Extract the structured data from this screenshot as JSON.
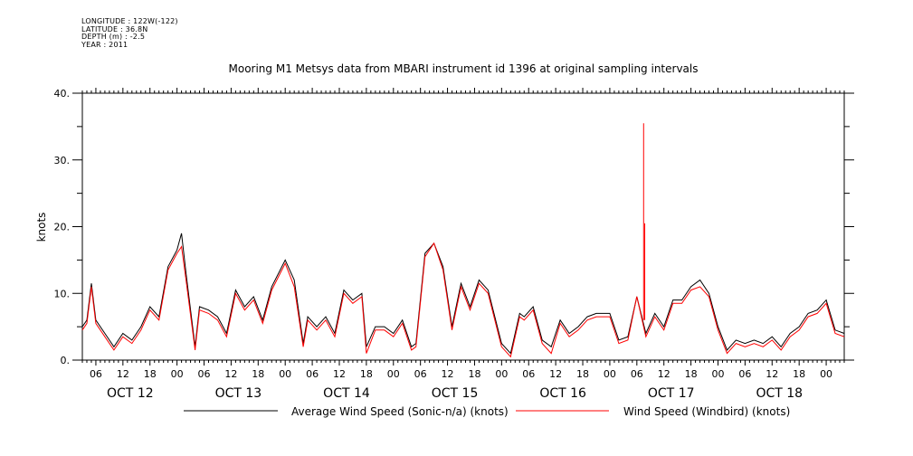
{
  "header": {
    "lines": [
      "LONGITUDE : 122W(-122)",
      "LATITUDE : 36.8N",
      "DEPTH (m) : -2.5",
      "YEAR : 2011"
    ]
  },
  "chart_data": {
    "type": "line",
    "title": "Mooring M1 Metsys data from MBARI instrument id 1396 at original sampling intervals",
    "ylabel": "knots",
    "ylim": [
      0,
      40
    ],
    "yticks": [
      "0.",
      "10.",
      "20.",
      "30.",
      "40."
    ],
    "xlim": [
      "2011-10-12T03:00",
      "2011-10-19T04:00"
    ],
    "hour_ticks": [
      "06",
      "12",
      "18",
      "00",
      "06",
      "12",
      "18",
      "00",
      "06",
      "12",
      "18",
      "00",
      "06",
      "12",
      "18",
      "00",
      "06",
      "12",
      "18",
      "00",
      "06",
      "12",
      "18",
      "00",
      "06",
      "12",
      "18",
      "00"
    ],
    "day_labels": [
      "OCT 12",
      "OCT 13",
      "OCT 14",
      "OCT 15",
      "OCT 16",
      "OCT 17",
      "OCT 18"
    ],
    "colors": {
      "avg": "#000000",
      "windbird": "#ff0000"
    },
    "series": [
      {
        "name": "Average Wind Speed (Sonic-n/a) (knots)",
        "color": "#000000",
        "x": [
          "2011-10-12T03:00",
          "2011-10-12T04:00",
          "2011-10-12T05:00",
          "2011-10-12T06:00",
          "2011-10-12T08:00",
          "2011-10-12T10:00",
          "2011-10-12T12:00",
          "2011-10-12T14:00",
          "2011-10-12T16:00",
          "2011-10-12T18:00",
          "2011-10-12T20:00",
          "2011-10-12T22:00",
          "2011-10-13T00:00",
          "2011-10-13T01:00",
          "2011-10-13T02:00",
          "2011-10-13T04:00",
          "2011-10-13T05:00",
          "2011-10-13T07:00",
          "2011-10-13T09:00",
          "2011-10-13T11:00",
          "2011-10-13T13:00",
          "2011-10-13T15:00",
          "2011-10-13T17:00",
          "2011-10-13T19:00",
          "2011-10-13T21:00",
          "2011-10-14T00:00",
          "2011-10-14T02:00",
          "2011-10-14T04:00",
          "2011-10-14T05:00",
          "2011-10-14T07:00",
          "2011-10-14T09:00",
          "2011-10-14T11:00",
          "2011-10-14T13:00",
          "2011-10-14T15:00",
          "2011-10-14T17:00",
          "2011-10-14T18:00",
          "2011-10-14T20:00",
          "2011-10-14T22:00",
          "2011-10-15T00:00",
          "2011-10-15T02:00",
          "2011-10-15T04:00",
          "2011-10-15T05:00",
          "2011-10-15T07:00",
          "2011-10-15T09:00",
          "2011-10-15T11:00",
          "2011-10-15T13:00",
          "2011-10-15T15:00",
          "2011-10-15T17:00",
          "2011-10-15T19:00",
          "2011-10-15T21:00",
          "2011-10-16T00:00",
          "2011-10-16T02:00",
          "2011-10-16T04:00",
          "2011-10-16T05:00",
          "2011-10-16T07:00",
          "2011-10-16T09:00",
          "2011-10-16T11:00",
          "2011-10-16T13:00",
          "2011-10-16T15:00",
          "2011-10-16T17:00",
          "2011-10-16T19:00",
          "2011-10-16T21:00",
          "2011-10-17T00:00",
          "2011-10-17T02:00",
          "2011-10-17T04:00",
          "2011-10-17T06:00",
          "2011-10-17T08:00",
          "2011-10-17T10:00",
          "2011-10-17T12:00",
          "2011-10-17T14:00",
          "2011-10-17T16:00",
          "2011-10-17T18:00",
          "2011-10-17T20:00",
          "2011-10-17T22:00",
          "2011-10-18T00:00",
          "2011-10-18T02:00",
          "2011-10-18T04:00",
          "2011-10-18T06:00",
          "2011-10-18T08:00",
          "2011-10-18T10:00",
          "2011-10-18T12:00",
          "2011-10-18T14:00",
          "2011-10-18T16:00",
          "2011-10-18T18:00",
          "2011-10-18T20:00",
          "2011-10-18T22:00",
          "2011-10-19T00:00",
          "2011-10-19T02:00",
          "2011-10-19T04:00"
        ],
        "y": [
          5,
          6,
          11.5,
          6,
          4,
          2,
          4,
          3,
          5,
          8,
          6.5,
          14,
          16.5,
          19,
          13,
          2,
          8,
          7.5,
          6.5,
          4,
          10.5,
          8,
          9.5,
          6,
          11,
          15,
          12,
          2.5,
          6.5,
          5,
          6.5,
          4,
          10.5,
          9,
          10,
          2,
          5,
          5,
          4,
          6,
          2,
          2.5,
          16,
          17.5,
          14,
          5,
          11.5,
          8,
          12,
          10.5,
          2.5,
          1,
          7,
          6.5,
          8,
          3,
          2,
          6,
          4,
          5,
          6.5,
          7,
          7,
          3,
          3.5,
          9.5,
          4,
          7,
          5,
          9,
          9,
          11,
          12,
          10,
          5,
          1.5,
          3,
          2.5,
          3,
          2.5,
          3.5,
          2,
          4,
          5,
          7,
          7.5,
          9,
          4.5,
          4
        ]
      },
      {
        "name": "Wind Speed (Windbird) (knots)",
        "color": "#ff0000",
        "x": [
          "2011-10-12T03:00",
          "2011-10-12T04:00",
          "2011-10-12T05:00",
          "2011-10-12T06:00",
          "2011-10-12T08:00",
          "2011-10-12T10:00",
          "2011-10-12T12:00",
          "2011-10-12T14:00",
          "2011-10-12T16:00",
          "2011-10-12T18:00",
          "2011-10-12T20:00",
          "2011-10-12T22:00",
          "2011-10-13T00:00",
          "2011-10-13T01:00",
          "2011-10-13T02:00",
          "2011-10-13T04:00",
          "2011-10-13T05:00",
          "2011-10-13T07:00",
          "2011-10-13T09:00",
          "2011-10-13T11:00",
          "2011-10-13T13:00",
          "2011-10-13T15:00",
          "2011-10-13T17:00",
          "2011-10-13T19:00",
          "2011-10-13T21:00",
          "2011-10-14T00:00",
          "2011-10-14T02:00",
          "2011-10-14T04:00",
          "2011-10-14T05:00",
          "2011-10-14T07:00",
          "2011-10-14T09:00",
          "2011-10-14T11:00",
          "2011-10-14T13:00",
          "2011-10-14T15:00",
          "2011-10-14T17:00",
          "2011-10-14T18:00",
          "2011-10-14T20:00",
          "2011-10-14T22:00",
          "2011-10-15T00:00",
          "2011-10-15T02:00",
          "2011-10-15T04:00",
          "2011-10-15T05:00",
          "2011-10-15T07:00",
          "2011-10-15T09:00",
          "2011-10-15T11:00",
          "2011-10-15T13:00",
          "2011-10-15T15:00",
          "2011-10-15T17:00",
          "2011-10-15T19:00",
          "2011-10-15T21:00",
          "2011-10-16T00:00",
          "2011-10-16T02:00",
          "2011-10-16T04:00",
          "2011-10-16T05:00",
          "2011-10-16T07:00",
          "2011-10-16T09:00",
          "2011-10-16T11:00",
          "2011-10-16T13:00",
          "2011-10-16T15:00",
          "2011-10-16T17:00",
          "2011-10-16T19:00",
          "2011-10-16T21:00",
          "2011-10-17T00:00",
          "2011-10-17T02:00",
          "2011-10-17T04:00",
          "2011-10-17T06:00",
          "2011-10-17T08:00",
          "2011-10-17T10:00",
          "2011-10-17T12:00",
          "2011-10-17T14:00",
          "2011-10-17T16:00",
          "2011-10-17T18:00",
          "2011-10-17T20:00",
          "2011-10-17T22:00",
          "2011-10-18T00:00",
          "2011-10-18T02:00",
          "2011-10-18T04:00",
          "2011-10-18T06:00",
          "2011-10-18T08:00",
          "2011-10-18T10:00",
          "2011-10-18T12:00",
          "2011-10-18T14:00",
          "2011-10-18T16:00",
          "2011-10-18T18:00",
          "2011-10-18T20:00",
          "2011-10-18T22:00",
          "2011-10-19T00:00",
          "2011-10-19T02:00",
          "2011-10-19T04:00"
        ],
        "y": [
          4.5,
          5.5,
          11,
          5.5,
          3.5,
          1.5,
          3.5,
          2.5,
          4.5,
          7.5,
          6,
          13.5,
          16,
          17,
          12,
          1.5,
          7.5,
          7,
          6,
          3.5,
          10,
          7.5,
          9,
          5.5,
          10.5,
          14.5,
          11,
          2,
          6,
          4.5,
          6,
          3.5,
          10,
          8.5,
          9.5,
          1,
          4.5,
          4.5,
          3.5,
          5.5,
          1.5,
          2,
          15.5,
          17.5,
          13.5,
          4.5,
          11,
          7.5,
          11.5,
          10,
          2,
          0.5,
          6.5,
          6,
          7.5,
          2.5,
          1,
          5.5,
          3.5,
          4.5,
          6,
          6.5,
          6.5,
          2.5,
          3,
          9.5,
          3.5,
          6.5,
          4.5,
          8.5,
          8.5,
          10.5,
          11,
          9.5,
          4.5,
          1,
          2.5,
          2,
          2.5,
          2,
          3,
          1.5,
          3.5,
          4.5,
          6.5,
          7,
          8.5,
          4,
          3.5
        ],
        "spikes": [
          {
            "x": "2011-10-17T07:30",
            "y": 35.5
          },
          {
            "x": "2011-10-17T07:45",
            "y": 20.5
          }
        ]
      }
    ],
    "legend_position": "bottom-center"
  }
}
